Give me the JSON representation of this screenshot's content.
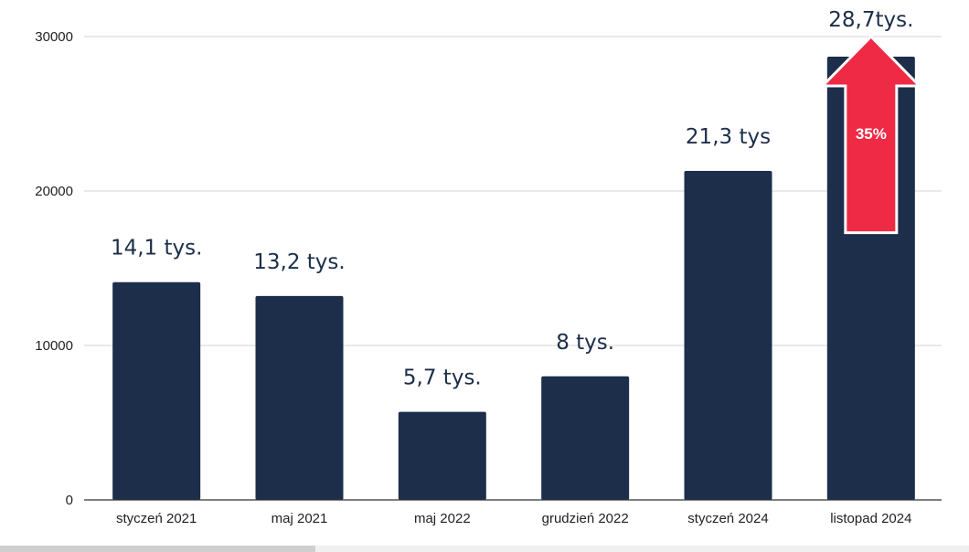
{
  "chart_data": {
    "type": "bar",
    "categories": [
      "styczeń 2021",
      "maj 2021",
      "maj 2022",
      "grudzień 2022",
      "styczeń 2024",
      "listopad 2024"
    ],
    "values": [
      14100,
      13200,
      5700,
      8000,
      21300,
      28700
    ],
    "data_labels": [
      "14,1 tys.",
      "13,2 tys.",
      "5,7 tys.",
      "8 tys.",
      "21,3 tys",
      "28,7tys."
    ],
    "y_ticks": [
      "0",
      "10000",
      "20000",
      "30000"
    ],
    "ylim": [
      0,
      30000
    ],
    "grid": true,
    "legend": "none",
    "annotation": {
      "text": "35%",
      "type": "up-arrow",
      "category": "listopad 2024",
      "from": 17300,
      "to": 30000
    },
    "colors": {
      "bar": "#1c2e4a",
      "arrow": "#ee2a45",
      "arrow_outline": "#ffffff",
      "grid": "#d4d4d4"
    }
  }
}
